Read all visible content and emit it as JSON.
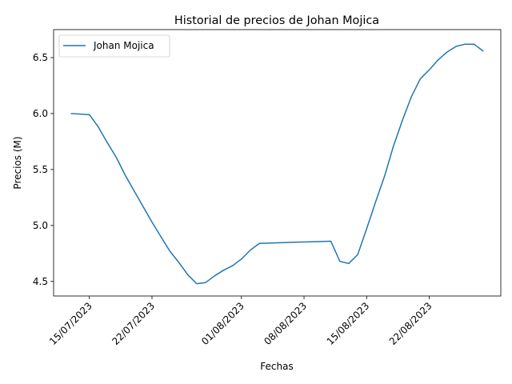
{
  "chart_data": {
    "type": "line",
    "title": "Historial de precios de Johan Mojica",
    "xlabel": "Fechas",
    "ylabel": "Precios (M)",
    "legend_placement": "top-left",
    "grid": false,
    "ylim": [
      4.37,
      6.75
    ],
    "xlim": [
      "2023-07-11",
      "2023-08-30"
    ],
    "x_ticks": [
      {
        "date": "2023-07-15",
        "label": "15/07/2023"
      },
      {
        "date": "2023-07-22",
        "label": "22/07/2023"
      },
      {
        "date": "2023-08-01",
        "label": "01/08/2023"
      },
      {
        "date": "2023-08-08",
        "label": "08/08/2023"
      },
      {
        "date": "2023-08-15",
        "label": "15/08/2023"
      },
      {
        "date": "2023-08-22",
        "label": "22/08/2023"
      }
    ],
    "y_ticks": [
      {
        "value": 4.5,
        "label": "4.5"
      },
      {
        "value": 5.0,
        "label": "5.0"
      },
      {
        "value": 5.5,
        "label": "5.5"
      },
      {
        "value": 6.0,
        "label": "6.0"
      },
      {
        "value": 6.5,
        "label": "6.5"
      }
    ],
    "series": [
      {
        "name": "Johan Mojica",
        "color": "#1f77b4",
        "x": [
          "2023-07-13",
          "2023-07-15",
          "2023-07-16",
          "2023-07-17",
          "2023-07-18",
          "2023-07-19",
          "2023-07-20",
          "2023-07-21",
          "2023-07-22",
          "2023-07-23",
          "2023-07-24",
          "2023-07-25",
          "2023-07-26",
          "2023-07-27",
          "2023-07-28",
          "2023-07-29",
          "2023-07-30",
          "2023-07-31",
          "2023-08-01",
          "2023-08-02",
          "2023-08-03",
          "2023-08-11",
          "2023-08-12",
          "2023-08-13",
          "2023-08-14",
          "2023-08-15",
          "2023-08-16",
          "2023-08-17",
          "2023-08-18",
          "2023-08-19",
          "2023-08-20",
          "2023-08-21",
          "2023-08-22",
          "2023-08-23",
          "2023-08-24",
          "2023-08-25",
          "2023-08-26",
          "2023-08-27",
          "2023-08-28"
        ],
        "values": [
          6.0,
          5.99,
          5.88,
          5.74,
          5.61,
          5.45,
          5.31,
          5.17,
          5.03,
          4.9,
          4.77,
          4.67,
          4.56,
          4.48,
          4.49,
          4.55,
          4.6,
          4.64,
          4.7,
          4.78,
          4.84,
          4.86,
          4.68,
          4.66,
          4.74,
          4.97,
          5.21,
          5.44,
          5.71,
          5.94,
          6.15,
          6.31,
          6.39,
          6.48,
          6.55,
          6.6,
          6.62,
          6.62,
          6.56
        ]
      }
    ]
  }
}
